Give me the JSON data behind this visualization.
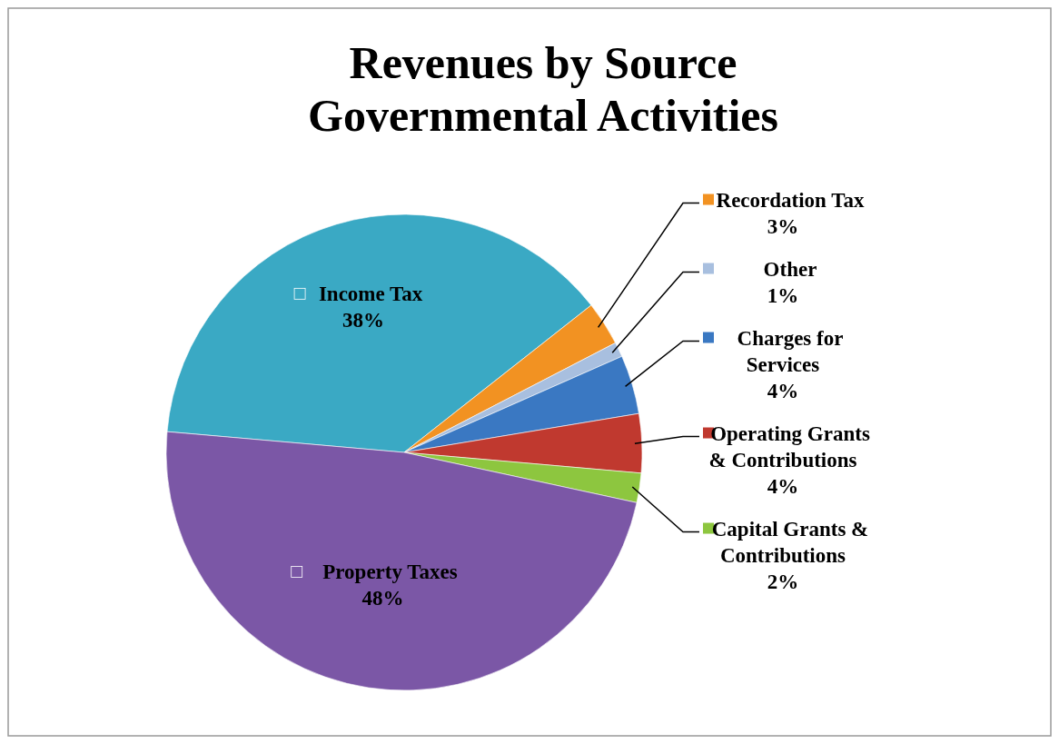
{
  "chart_data": {
    "type": "pie",
    "title": "Revenues by Source\nGovernmental Activities",
    "categories": [
      "Income Tax",
      "Recordation Tax",
      "Other",
      "Charges for Services",
      "Operating Grants & Contributions",
      "Capital Grants & Contributions",
      "Property Taxes"
    ],
    "values": [
      38,
      3,
      1,
      4,
      4,
      2,
      48
    ],
    "value_labels": [
      "38%",
      "3%",
      "1%",
      "4%",
      "4%",
      "2%",
      "48%"
    ],
    "colors": [
      "#3aa9c4",
      "#f29222",
      "#a8bfdf",
      "#3a78c2",
      "#c0392f",
      "#8dc63f",
      "#7b57a6"
    ],
    "legend": "right"
  }
}
